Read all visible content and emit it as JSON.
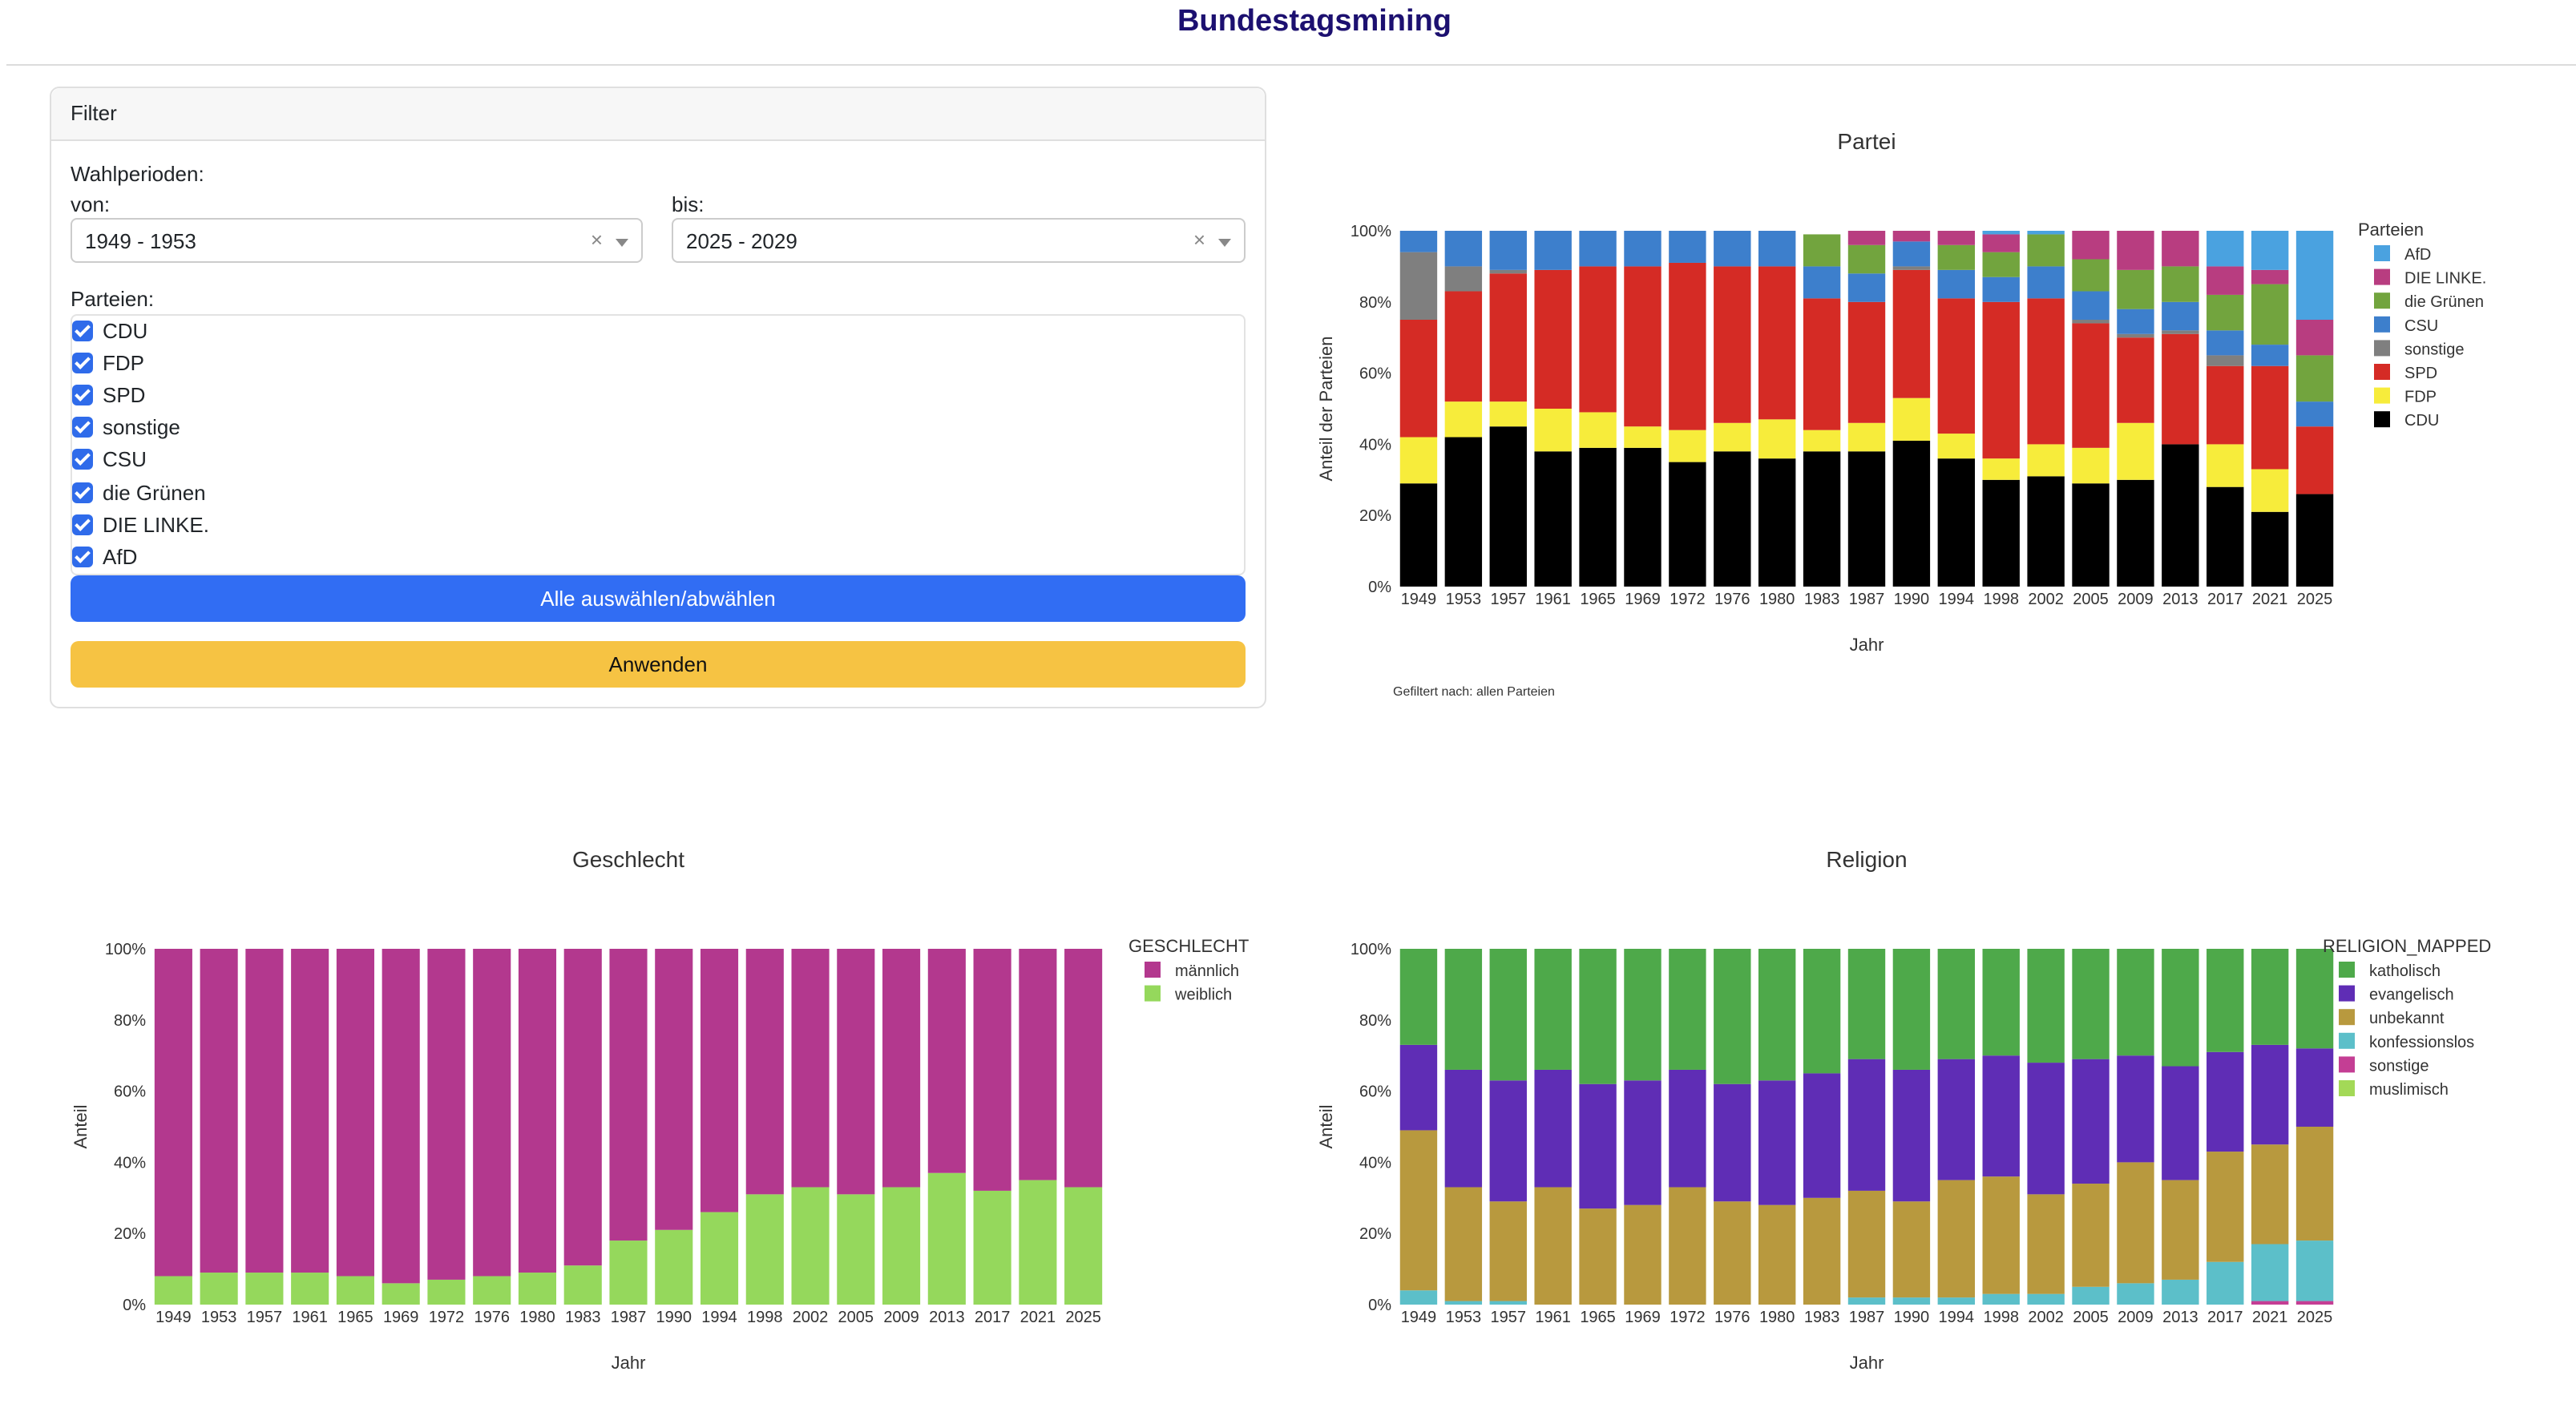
{
  "page": {
    "title": "Bundestagsmining"
  },
  "filter": {
    "header": "Filter",
    "wahlperioden_label": "Wahlperioden:",
    "von_label": "von:",
    "von_value": "1949 - 1953",
    "bis_label": "bis:",
    "bis_value": "2025 - 2029",
    "clear_glyph": "×",
    "parteien_label": "Parteien:",
    "parteien": [
      {
        "label": "CDU",
        "checked": true
      },
      {
        "label": "FDP",
        "checked": true
      },
      {
        "label": "SPD",
        "checked": true
      },
      {
        "label": "sonstige",
        "checked": true
      },
      {
        "label": "CSU",
        "checked": true
      },
      {
        "label": "die Grünen",
        "checked": true
      },
      {
        "label": "DIE LINKE.",
        "checked": true
      },
      {
        "label": "AfD",
        "checked": true
      }
    ],
    "select_all_label": "Alle auswählen/abwählen",
    "apply_label": "Anwenden",
    "colors": {
      "checkbox": "#2f6bea",
      "select_all": "#316df3",
      "apply": "#f6c343"
    }
  },
  "chart_data": [
    {
      "type": "bar",
      "stacked": true,
      "title": "Partei",
      "xlabel": "Jahr",
      "ylabel": "Anteil der Parteien",
      "ylim": [
        0,
        100
      ],
      "y_ticks": [
        "0%",
        "20%",
        "40%",
        "60%",
        "80%",
        "100%"
      ],
      "legend_title": "Parteien",
      "legend_position": "right",
      "annotation": "Gefiltert nach: allen Parteien",
      "categories": [
        "1949",
        "1953",
        "1957",
        "1961",
        "1965",
        "1969",
        "1972",
        "1976",
        "1980",
        "1983",
        "1987",
        "1990",
        "1994",
        "1998",
        "2002",
        "2005",
        "2009",
        "2013",
        "2017",
        "2021",
        "2025"
      ],
      "series": [
        {
          "name": "CDU",
          "color": "#000000",
          "values": [
            29,
            42,
            45,
            38,
            39,
            39,
            35,
            38,
            36,
            38,
            38,
            41,
            36,
            30,
            31,
            29,
            30,
            40,
            28,
            21,
            26
          ]
        },
        {
          "name": "FDP",
          "color": "#f7ec3b",
          "values": [
            13,
            10,
            7,
            12,
            10,
            6,
            9,
            8,
            11,
            6,
            8,
            12,
            7,
            6,
            9,
            10,
            16,
            0,
            12,
            12,
            0
          ]
        },
        {
          "name": "SPD",
          "color": "#d52b25",
          "values": [
            33,
            31,
            36,
            39,
            41,
            45,
            47,
            44,
            43,
            37,
            34,
            36,
            38,
            44,
            41,
            35,
            24,
            31,
            22,
            29,
            19
          ]
        },
        {
          "name": "sonstige",
          "color": "#7f7f7f",
          "values": [
            19,
            7,
            1,
            0,
            0,
            0,
            0,
            0,
            0,
            0,
            0,
            1,
            0,
            0,
            0,
            1,
            1,
            1,
            3,
            0,
            0
          ]
        },
        {
          "name": "CSU",
          "color": "#3d7fcc",
          "values": [
            6,
            10,
            11,
            11,
            10,
            10,
            9,
            10,
            10,
            9,
            8,
            7,
            8,
            7,
            9,
            8,
            7,
            8,
            7,
            6,
            7
          ]
        },
        {
          "name": "die Grünen",
          "color": "#72a43e",
          "values": [
            0,
            0,
            0,
            0,
            0,
            0,
            0,
            0,
            0,
            9,
            8,
            0,
            7,
            7,
            9,
            9,
            11,
            10,
            10,
            17,
            13
          ]
        },
        {
          "name": "DIE LINKE.",
          "color": "#b83d80",
          "values": [
            0,
            0,
            0,
            0,
            0,
            0,
            0,
            0,
            0,
            0,
            4,
            3,
            4,
            5,
            0,
            8,
            11,
            10,
            8,
            4,
            10
          ]
        },
        {
          "name": "AfD",
          "color": "#4aa2e0",
          "values": [
            0,
            0,
            0,
            0,
            0,
            0,
            0,
            0,
            0,
            0,
            0,
            0,
            0,
            1,
            1,
            0,
            0,
            0,
            10,
            11,
            25
          ]
        }
      ]
    },
    {
      "type": "bar",
      "stacked": true,
      "title": "Geschlecht",
      "xlabel": "Jahr",
      "ylabel": "Anteil",
      "ylim": [
        0,
        100
      ],
      "y_ticks": [
        "0%",
        "20%",
        "40%",
        "60%",
        "80%",
        "100%"
      ],
      "legend_title": "GESCHLECHT",
      "legend_position": "right",
      "categories": [
        "1949",
        "1953",
        "1957",
        "1961",
        "1965",
        "1969",
        "1972",
        "1976",
        "1980",
        "1983",
        "1987",
        "1990",
        "1994",
        "1998",
        "2002",
        "2005",
        "2009",
        "2013",
        "2017",
        "2021",
        "2025"
      ],
      "series": [
        {
          "name": "weiblich",
          "color": "#95d85c",
          "values": [
            8,
            9,
            9,
            9,
            8,
            6,
            7,
            8,
            9,
            11,
            18,
            21,
            26,
            31,
            33,
            31,
            33,
            37,
            32,
            35,
            33
          ]
        },
        {
          "name": "männlich",
          "color": "#b3388e",
          "values": [
            92,
            91,
            91,
            91,
            92,
            94,
            93,
            92,
            91,
            89,
            82,
            79,
            74,
            69,
            67,
            69,
            67,
            63,
            68,
            65,
            67
          ]
        }
      ],
      "legend_order": [
        "männlich",
        "weiblich"
      ]
    },
    {
      "type": "bar",
      "stacked": true,
      "title": "Religion",
      "xlabel": "Jahr",
      "ylabel": "Anteil",
      "ylim": [
        0,
        100
      ],
      "y_ticks": [
        "0%",
        "20%",
        "40%",
        "60%",
        "80%",
        "100%"
      ],
      "legend_title": "RELIGION_MAPPED",
      "legend_position": "right",
      "categories": [
        "1949",
        "1953",
        "1957",
        "1961",
        "1965",
        "1969",
        "1972",
        "1976",
        "1980",
        "1983",
        "1987",
        "1990",
        "1994",
        "1998",
        "2002",
        "2005",
        "2009",
        "2013",
        "2017",
        "2021",
        "2025"
      ],
      "series": [
        {
          "name": "muslimisch",
          "color": "#a3d957",
          "values": [
            0,
            0,
            0,
            0,
            0,
            0,
            0,
            0,
            0,
            0,
            0,
            0,
            0,
            0,
            0,
            0,
            0,
            0,
            0,
            0,
            0
          ]
        },
        {
          "name": "sonstige",
          "color": "#c43e94",
          "values": [
            0,
            0,
            0,
            0,
            0,
            0,
            0,
            0,
            0,
            0,
            0,
            0,
            0,
            0,
            0,
            0,
            0,
            0,
            0,
            1,
            1
          ]
        },
        {
          "name": "konfessionslos",
          "color": "#5cbfc9",
          "values": [
            4,
            1,
            1,
            0,
            0,
            0,
            0,
            0,
            0,
            0,
            2,
            2,
            2,
            3,
            3,
            5,
            6,
            7,
            12,
            16,
            17
          ]
        },
        {
          "name": "unbekannt",
          "color": "#b8993e",
          "values": [
            45,
            32,
            28,
            33,
            27,
            28,
            33,
            29,
            28,
            30,
            30,
            27,
            33,
            33,
            28,
            29,
            34,
            28,
            31,
            28,
            32
          ]
        },
        {
          "name": "evangelisch",
          "color": "#5f2db5",
          "values": [
            24,
            33,
            34,
            33,
            35,
            35,
            33,
            33,
            35,
            35,
            37,
            37,
            34,
            34,
            37,
            35,
            30,
            32,
            28,
            28,
            22
          ]
        },
        {
          "name": "katholisch",
          "color": "#4ea94a",
          "values": [
            27,
            34,
            37,
            34,
            38,
            37,
            34,
            38,
            37,
            35,
            31,
            34,
            31,
            30,
            32,
            31,
            30,
            33,
            29,
            27,
            28
          ]
        }
      ],
      "legend_order": [
        "katholisch",
        "evangelisch",
        "unbekannt",
        "konfessionslos",
        "sonstige",
        "muslimisch"
      ]
    }
  ]
}
